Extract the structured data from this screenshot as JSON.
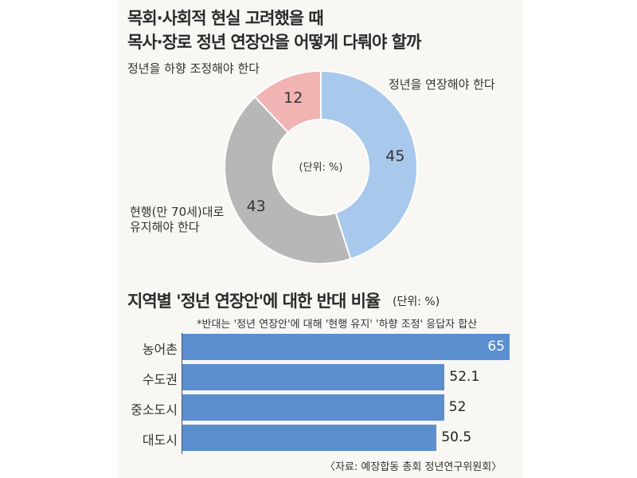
{
  "title": {
    "line1": "목회·사회적 현실 고려했을 때",
    "line2": "목사·장로 정년 연장안을 어떻게 다뤄야 할까"
  },
  "chart_data": [
    {
      "type": "pie",
      "donut": true,
      "center_note": "(단위: %)",
      "slices": [
        {
          "label": "정년을 연장해야 한다",
          "value": 45,
          "color": "#a9c9ec"
        },
        {
          "label": "현행(만 70세)대로 유지해야 한다",
          "label_lines": [
            "현행(만 70세)대로",
            "유지해야 한다"
          ],
          "value": 43,
          "color": "#b7b7b7"
        },
        {
          "label": "정년을 하향 조정해야 한다",
          "value": 12,
          "color": "#f2b3b3"
        }
      ]
    },
    {
      "type": "bar",
      "orientation": "horizontal",
      "title": "지역별 '정년 연장안'에 대한 반대 비율",
      "unit": "(단위: %)",
      "note": "*반대는 '정년 연장안'에 대해 '현행 유지' '하향 조정' 응답자 합산",
      "categories": [
        "농어촌",
        "수도권",
        "중소도시",
        "대도시"
      ],
      "values": [
        65,
        52.1,
        52,
        50.5
      ],
      "value_labels": [
        "65",
        "52.1",
        "52",
        "50.5"
      ],
      "xlim": [
        0,
        65
      ],
      "color": "#5b8ecf"
    }
  ],
  "source": "〈자료: 예장합동 총회 정년연구위원회〉"
}
